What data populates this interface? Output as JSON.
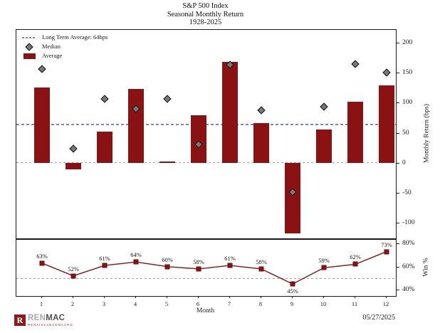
{
  "title": {
    "line1": "S&P 500 Index",
    "line2": "Seasonal Monthly Return",
    "line3": "1928-2025"
  },
  "legend": {
    "long_term_avg": "Long Term Average: 64bps",
    "median": "Median",
    "average": "Average"
  },
  "axes": {
    "main_ylabel": "Monthly Return (bps)",
    "sub_ylabel": "Win %",
    "xlabel": "Month",
    "xtick_labels": [
      "1",
      "2",
      "3",
      "4",
      "5",
      "6",
      "7",
      "8",
      "9",
      "10",
      "11",
      "12"
    ],
    "main_ytick_labels": [
      "200",
      "150",
      "100",
      "50",
      "0",
      "-50",
      "-100"
    ],
    "sub_ytick_labels": [
      "80%",
      "60%",
      "40%"
    ]
  },
  "chart_data": [
    {
      "type": "bar",
      "title": "S&P 500 Index Seasonal Monthly Return 1928-2025",
      "categories": [
        1,
        2,
        3,
        4,
        5,
        6,
        7,
        8,
        9,
        10,
        11,
        12
      ],
      "series": [
        {
          "name": "Average",
          "type": "bar",
          "values": [
            125,
            -11,
            52,
            123,
            2,
            79,
            168,
            66,
            -118,
            55,
            102,
            129
          ]
        },
        {
          "name": "Median",
          "type": "scatter",
          "marker": "diamond",
          "values": [
            156,
            24,
            106,
            90,
            106,
            31,
            163,
            88,
            -49,
            94,
            165,
            150
          ]
        }
      ],
      "reference_lines": [
        {
          "name": "Long Term Average",
          "value": 64,
          "style": "dashed",
          "color": "#7d7de8"
        },
        {
          "name": "Zero",
          "value": 0,
          "style": "dashed",
          "color": "#a3a3a3"
        }
      ],
      "ylabel": "Monthly Return (bps)",
      "yticks": [
        200,
        150,
        100,
        50,
        0,
        -50,
        -100
      ],
      "ylim": [
        -126,
        221.5
      ],
      "legend_position": "upper-left",
      "grid": false
    },
    {
      "type": "line",
      "categories": [
        1,
        2,
        3,
        4,
        5,
        6,
        7,
        8,
        9,
        10,
        11,
        12
      ],
      "series": [
        {
          "name": "Win %",
          "values": [
            63,
            52,
            61,
            64,
            60,
            58,
            61,
            58,
            45,
            59,
            62,
            73
          ]
        }
      ],
      "data_labels": [
        "63%",
        "52%",
        "61%",
        "64%",
        "60%",
        "58%",
        "61%",
        "58%",
        "45%",
        "59%",
        "62%",
        "73%"
      ],
      "reference_lines": [
        {
          "name": "50 percent line",
          "value": 50,
          "style": "dashed",
          "color": "#a3a3a3"
        }
      ],
      "ylabel": "Win %",
      "xlabel": "Month",
      "yticks": [
        80,
        60,
        40
      ],
      "ylim": [
        34.6,
        83.2
      ],
      "grid": false
    }
  ],
  "footer": {
    "logo_ren": "REN",
    "logo_mac": "MAC",
    "logo_sub": "RENAISSANCEMACRO",
    "logo_glyph": "R",
    "date": "05/27/2025"
  },
  "colors": {
    "bar": "#8b1212",
    "median_marker": "#787878",
    "long_term_line": "#7d7de8",
    "dashed_gray": "#a3a3a3",
    "logo_red": "#8e1b1b"
  }
}
